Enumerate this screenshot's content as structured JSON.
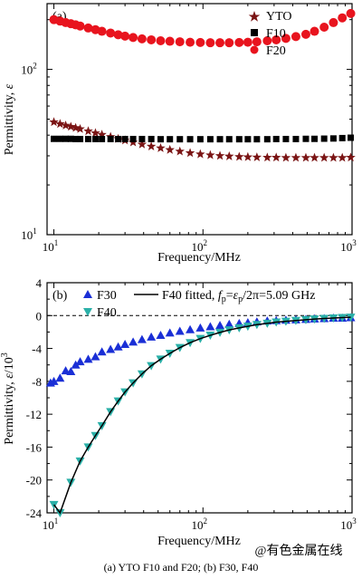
{
  "chart_data": [
    {
      "panel": "(a)",
      "type": "scatter",
      "x_scale": "log",
      "y_scale": "log",
      "xlim": [
        9,
        1000
      ],
      "ylim": [
        10,
        250
      ],
      "xlabel": "Frequency/MHz",
      "ylabel_main": "Permittivity, ",
      "ylabel_symbol": "ε",
      "x_ticks": [
        10,
        100,
        1000
      ],
      "x_tick_labels": {
        "base": [
          "10",
          "10",
          "10"
        ],
        "exp": [
          "1",
          "2",
          "3"
        ]
      },
      "y_ticks": [
        10,
        100
      ],
      "y_tick_labels": {
        "base": [
          "10",
          "10"
        ],
        "exp": [
          "1",
          "2"
        ]
      },
      "legend_position": "top-right",
      "series": [
        {
          "name": "YTO",
          "marker": "star",
          "color": "#7a1414",
          "x": [
            10,
            11,
            12,
            13,
            14,
            15,
            17,
            19,
            21,
            24,
            27,
            30,
            34,
            39,
            45,
            52,
            60,
            70,
            82,
            96,
            112,
            130,
            150,
            175,
            200,
            230,
            270,
            310,
            360,
            420,
            490,
            560,
            650,
            750,
            860,
            980
          ],
          "y": [
            48,
            46.8,
            45.8,
            45,
            44.3,
            43.6,
            42.3,
            41.2,
            40.3,
            39.1,
            38,
            37.2,
            36.2,
            35.2,
            34.2,
            33.4,
            32.6,
            31.9,
            31.2,
            30.7,
            30.3,
            30,
            29.8,
            29.6,
            29.5,
            29.4,
            29.3,
            29.3,
            29.2,
            29.2,
            29.2,
            29.2,
            29.2,
            29.2,
            29.2,
            29.3
          ]
        },
        {
          "name": "F10",
          "marker": "square",
          "color": "#000000",
          "x": [
            10,
            11,
            12,
            13,
            14,
            15,
            17,
            19,
            21,
            24,
            27,
            30,
            34,
            39,
            45,
            52,
            60,
            70,
            82,
            96,
            112,
            130,
            150,
            175,
            200,
            230,
            270,
            310,
            360,
            420,
            490,
            560,
            650,
            750,
            860,
            980
          ],
          "y": [
            38,
            38,
            38,
            38,
            37.9,
            37.9,
            37.9,
            37.9,
            37.9,
            37.9,
            37.9,
            37.9,
            37.9,
            37.9,
            37.9,
            37.8,
            37.8,
            37.8,
            37.8,
            37.8,
            37.8,
            37.8,
            37.8,
            37.8,
            37.8,
            37.8,
            37.8,
            37.9,
            37.9,
            37.9,
            38,
            38,
            38.1,
            38.2,
            38.4,
            38.6
          ]
        },
        {
          "name": "F20",
          "marker": "circle",
          "color": "#e8141e",
          "x": [
            10,
            11,
            12,
            13,
            14,
            15,
            17,
            19,
            21,
            24,
            27,
            30,
            34,
            39,
            45,
            52,
            60,
            70,
            82,
            96,
            112,
            130,
            150,
            175,
            200,
            230,
            270,
            310,
            360,
            420,
            490,
            560,
            650,
            750,
            860,
            980
          ],
          "y": [
            200,
            196,
            192,
            189,
            186,
            183,
            178,
            174,
            170,
            166,
            162,
            159,
            156,
            153,
            151,
            149,
            148,
            147,
            146,
            145.5,
            145,
            145,
            145,
            145.5,
            146,
            147,
            149,
            151,
            154,
            158,
            163,
            170,
            180,
            192,
            205,
            218
          ]
        }
      ]
    },
    {
      "panel": "(b)",
      "type": "scatter",
      "x_scale": "log",
      "xlim": [
        9,
        1000
      ],
      "ylim": [
        -24,
        4
      ],
      "xlabel": "Frequency/MHz",
      "ylabel_main": "Permittivity, ",
      "ylabel_symbol": "ε",
      "ylabel_unit_base": "/10",
      "ylabel_unit_exp": "3",
      "x_ticks": [
        10,
        100,
        1000
      ],
      "x_tick_labels": {
        "base": [
          "10",
          "10",
          "10"
        ],
        "exp": [
          "1",
          "2",
          "3"
        ]
      },
      "y_ticks": [
        4,
        0,
        -4,
        -8,
        -12,
        -16,
        -20,
        -24
      ],
      "y_tick_labels": [
        "4",
        "0",
        "-4",
        "-8",
        "-12",
        "-16",
        "-20",
        "-24"
      ],
      "zero_line": true,
      "legend_position": "top-left",
      "series": [
        {
          "name": "F30",
          "marker": "triangle-up",
          "color": "#1a2fd6",
          "x": [
            9.5,
            10,
            11,
            12,
            13,
            14,
            15,
            17,
            19,
            21,
            24,
            27,
            30,
            34,
            39,
            45,
            52,
            60,
            70,
            82,
            96,
            112,
            130,
            150,
            175,
            200,
            230,
            270,
            310,
            360,
            420,
            490,
            560,
            650,
            750,
            860,
            980
          ],
          "y": [
            -8.2,
            -8,
            -7.6,
            -6.7,
            -6.8,
            -6,
            -5.6,
            -5.3,
            -5,
            -4.4,
            -4.1,
            -3.8,
            -3.5,
            -3.2,
            -2.9,
            -2.6,
            -2.4,
            -2.1,
            -1.9,
            -1.7,
            -1.5,
            -1.35,
            -1.2,
            -1.05,
            -0.95,
            -0.85,
            -0.75,
            -0.65,
            -0.6,
            -0.55,
            -0.5,
            -0.45,
            -0.4,
            -0.35,
            -0.3,
            -0.3,
            -0.25
          ]
        },
        {
          "name": "F40",
          "marker": "triangle-down",
          "color": "#2ab0a8",
          "x": [
            10,
            11,
            13,
            15,
            17,
            19,
            21,
            24,
            27,
            30,
            34,
            39,
            45,
            52,
            60,
            70,
            82,
            96,
            112,
            130,
            150,
            175,
            200,
            230,
            270,
            310,
            360,
            420,
            490,
            560,
            650,
            750,
            860,
            980
          ],
          "y": [
            -23,
            -24,
            -20.3,
            -17.7,
            -16,
            -14.6,
            -13.4,
            -11.7,
            -10.4,
            -9.3,
            -8.2,
            -7.1,
            -6.1,
            -5.3,
            -4.6,
            -3.9,
            -3.3,
            -2.8,
            -2.4,
            -2.05,
            -1.75,
            -1.5,
            -1.3,
            -1.1,
            -0.95,
            -0.8,
            -0.7,
            -0.6,
            -0.5,
            -0.42,
            -0.35,
            -0.3,
            -0.25,
            -0.2
          ]
        }
      ],
      "fit_line": {
        "legend_main": "F40 fitted, ",
        "legend_fp_sym": "f",
        "legend_fp_sub": "p",
        "legend_eq": "=",
        "legend_ep_sym": "ε",
        "legend_ep_sub": "p",
        "legend_tail": "/2π=5.09 GHz",
        "fp_GHz": 5.09,
        "color": "#000000"
      }
    }
  ],
  "caption": "(a)  YTO  F10 and F20; (b) F30, F40",
  "watermark": "@有色金属在线"
}
